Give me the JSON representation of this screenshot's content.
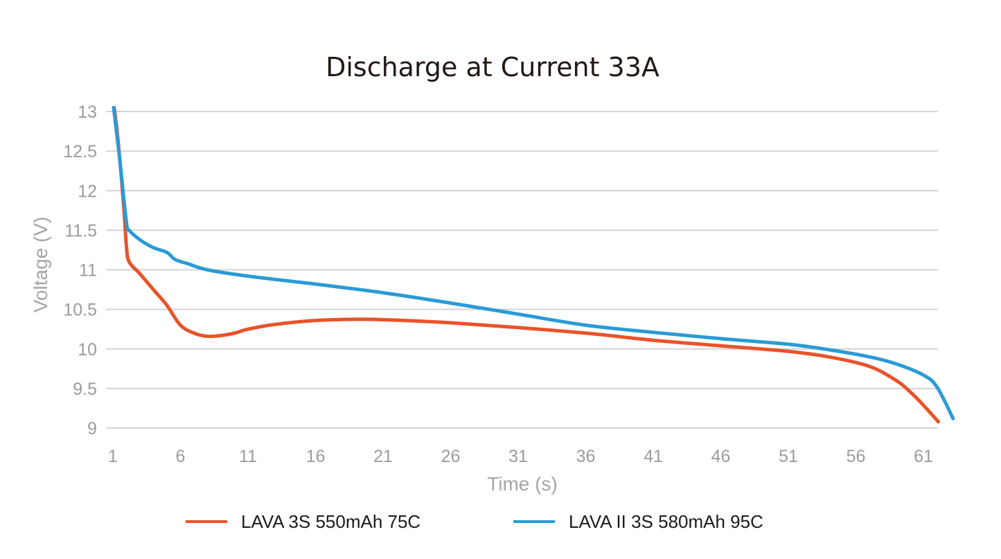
{
  "chart_data": {
    "type": "line",
    "title": "Discharge at Current 33A",
    "xlabel": "Time (s)",
    "ylabel": "Voltage (V)",
    "xlim": [
      1,
      63
    ],
    "ylim": [
      9,
      13
    ],
    "x_ticks": [
      "1",
      "6",
      "11",
      "16",
      "21",
      "26",
      "31",
      "36",
      "41",
      "46",
      "51",
      "56",
      "61"
    ],
    "y_ticks": [
      "13",
      "12.5",
      "12",
      "11.5",
      "11",
      "10.5",
      "10",
      "9.5",
      "9"
    ],
    "grid": true,
    "legend_position": "bottom",
    "series": [
      {
        "name": "LAVA 3S 550mAh 75C",
        "color": "#e8532a",
        "points": [
          [
            1.1,
            13.05
          ],
          [
            1.4,
            12.6
          ],
          [
            1.8,
            11.8
          ],
          [
            2.0,
            11.3
          ],
          [
            2.2,
            11.1
          ],
          [
            3.0,
            10.95
          ],
          [
            4.0,
            10.75
          ],
          [
            5.0,
            10.55
          ],
          [
            6.0,
            10.3
          ],
          [
            7.0,
            10.2
          ],
          [
            8.0,
            10.16
          ],
          [
            9.0,
            10.17
          ],
          [
            10.0,
            10.2
          ],
          [
            11.0,
            10.25
          ],
          [
            13.0,
            10.31
          ],
          [
            16.0,
            10.36
          ],
          [
            19.0,
            10.375
          ],
          [
            21.0,
            10.37
          ],
          [
            26.0,
            10.33
          ],
          [
            31.0,
            10.27
          ],
          [
            36.0,
            10.2
          ],
          [
            41.0,
            10.11
          ],
          [
            46.0,
            10.04
          ],
          [
            51.0,
            9.97
          ],
          [
            54.0,
            9.9
          ],
          [
            57.0,
            9.78
          ],
          [
            59.0,
            9.6
          ],
          [
            60.0,
            9.46
          ],
          [
            61.0,
            9.29
          ],
          [
            62.1,
            9.08
          ]
        ]
      },
      {
        "name": "LAVA II 3S 580mAh 95C",
        "color": "#2a9bd6",
        "points": [
          [
            1.05,
            13.05
          ],
          [
            1.5,
            12.4
          ],
          [
            2.0,
            11.6
          ],
          [
            2.2,
            11.5
          ],
          [
            3.0,
            11.38
          ],
          [
            4.0,
            11.28
          ],
          [
            5.0,
            11.22
          ],
          [
            5.6,
            11.13
          ],
          [
            6.5,
            11.08
          ],
          [
            8.0,
            11.0
          ],
          [
            11.0,
            10.92
          ],
          [
            16.0,
            10.82
          ],
          [
            21.0,
            10.71
          ],
          [
            26.0,
            10.58
          ],
          [
            31.0,
            10.44
          ],
          [
            36.0,
            10.3
          ],
          [
            41.0,
            10.21
          ],
          [
            46.0,
            10.13
          ],
          [
            51.0,
            10.06
          ],
          [
            54.0,
            9.99
          ],
          [
            57.0,
            9.9
          ],
          [
            59.0,
            9.81
          ],
          [
            61.0,
            9.67
          ],
          [
            62.0,
            9.52
          ],
          [
            63.2,
            9.12
          ]
        ]
      }
    ]
  }
}
